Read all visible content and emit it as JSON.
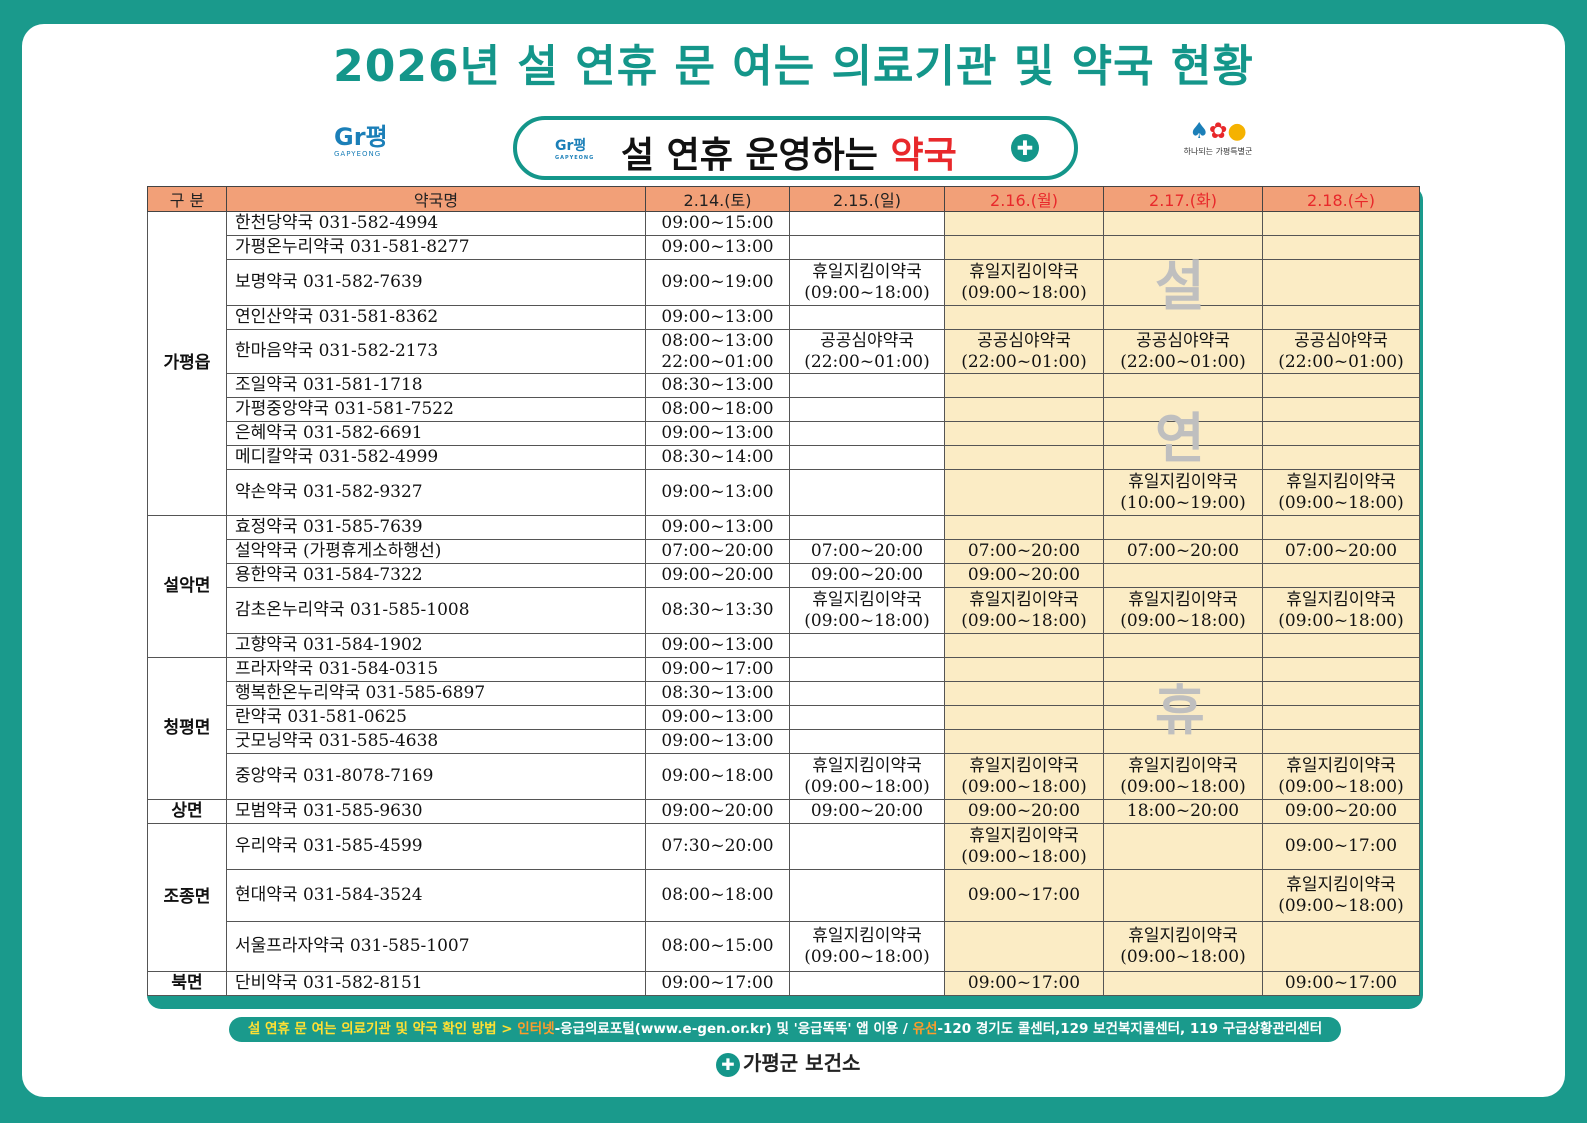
{
  "title": "2026년 설 연휴 문 여는 의료기관 및 약국 현황",
  "subtitle": {
    "prefix": "설 연휴 운영하는 ",
    "highlight": "약국"
  },
  "logos": {
    "left": "Gr평",
    "left_sub": "GAPYEONG",
    "right_sub": "하나되는 가평특별군"
  },
  "columns": [
    "구 분",
    "약국명",
    "2.14.(토)",
    "2.15.(일)",
    "2.16.(월)",
    "2.17.(화)",
    "2.18.(수)"
  ],
  "holiday_overlay": [
    "설",
    "연",
    "휴"
  ],
  "rows": [
    {
      "region": "가평읍",
      "name": "한천당약국 031-582-4994",
      "d14": "09:00~15:00",
      "d15": "",
      "d16": "",
      "d17": "",
      "d18": ""
    },
    {
      "name": "가평온누리약국 031-581-8277",
      "d14": "09:00~13:00",
      "d15": "",
      "d16": "",
      "d17": "",
      "d18": ""
    },
    {
      "name": "보명약국 031-582-7639",
      "d14": "09:00~19:00",
      "d15": "휴일지킴이약국\n(09:00~18:00)",
      "d16": "휴일지킴이약국\n(09:00~18:00)",
      "d17": "",
      "d18": ""
    },
    {
      "name": "연인산약국 031-581-8362",
      "d14": "09:00~13:00",
      "d15": "",
      "d16": "",
      "d17": "",
      "d18": ""
    },
    {
      "name": "한마음약국 031-582-2173",
      "d14": "08:00~13:00\n22:00~01:00",
      "d15": "공공심야약국\n(22:00~01:00)",
      "d16": "공공심야약국\n(22:00~01:00)",
      "d17": "공공심야약국\n(22:00~01:00)",
      "d18": "공공심야약국\n(22:00~01:00)"
    },
    {
      "name": "조일약국 031-581-1718",
      "d14": "08:30~13:00",
      "d15": "",
      "d16": "",
      "d17": "",
      "d18": ""
    },
    {
      "name": "가평중앙약국 031-581-7522",
      "d14": "08:00~18:00",
      "d15": "",
      "d16": "",
      "d17": "",
      "d18": ""
    },
    {
      "name": "은혜약국 031-582-6691",
      "d14": "09:00~13:00",
      "d15": "",
      "d16": "",
      "d17": "",
      "d18": ""
    },
    {
      "name": "메디칼약국 031-582-4999",
      "d14": "08:30~14:00",
      "d15": "",
      "d16": "",
      "d17": "",
      "d18": ""
    },
    {
      "name": "약손약국 031-582-9327",
      "d14": "09:00~13:00",
      "d15": "",
      "d16": "",
      "d17": "휴일지킴이약국\n(10:00~19:00)",
      "d18": "휴일지킴이약국\n(09:00~18:00)"
    },
    {
      "region": "설악면",
      "name": "효정약국 031-585-7639",
      "d14": "09:00~13:00",
      "d15": "",
      "d16": "",
      "d17": "",
      "d18": ""
    },
    {
      "name": "설악약국 (가평휴게소하행선)",
      "d14": "07:00~20:00",
      "d15": "07:00~20:00",
      "d16": "07:00~20:00",
      "d17": "07:00~20:00",
      "d18": "07:00~20:00"
    },
    {
      "name": "용한약국 031-584-7322",
      "d14": "09:00~20:00",
      "d15": "09:00~20:00",
      "d16": "09:00~20:00",
      "d17": "",
      "d18": ""
    },
    {
      "name": "감초온누리약국 031-585-1008",
      "d14": "08:30~13:30",
      "d15": "휴일지킴이약국\n(09:00~18:00)",
      "d16": "휴일지킴이약국\n(09:00~18:00)",
      "d17": "휴일지킴이약국\n(09:00~18:00)",
      "d18": "휴일지킴이약국\n(09:00~18:00)"
    },
    {
      "name": "고향약국 031-584-1902",
      "d14": "09:00~13:00",
      "d15": "",
      "d16": "",
      "d17": "",
      "d18": ""
    },
    {
      "region": "청평면",
      "name": "프라자약국 031-584-0315",
      "d14": "09:00~17:00",
      "d15": "",
      "d16": "",
      "d17": "",
      "d18": ""
    },
    {
      "name": "행복한온누리약국 031-585-6897",
      "d14": "08:30~13:00",
      "d15": "",
      "d16": "",
      "d17": "",
      "d18": ""
    },
    {
      "name": "란약국 031-581-0625",
      "d14": "09:00~13:00",
      "d15": "",
      "d16": "",
      "d17": "",
      "d18": ""
    },
    {
      "name": "굿모닝약국 031-585-4638",
      "d14": "09:00~13:00",
      "d15": "",
      "d16": "",
      "d17": "",
      "d18": ""
    },
    {
      "name": "중앙약국 031-8078-7169",
      "d14": "09:00~18:00",
      "d15": "휴일지킴이약국\n(09:00~18:00)",
      "d16": "휴일지킴이약국\n(09:00~18:00)",
      "d17": "휴일지킴이약국\n(09:00~18:00)",
      "d18": "휴일지킴이약국\n(09:00~18:00)"
    },
    {
      "region": "상면",
      "name": "모범약국 031-585-9630",
      "d14": "09:00~20:00",
      "d15": "09:00~20:00",
      "d16": "09:00~20:00",
      "d17": "18:00~20:00",
      "d18": "09:00~20:00"
    },
    {
      "region": "조종면",
      "name": "우리약국 031-585-4599",
      "d14": "07:30~20:00",
      "d15": "",
      "d16": "휴일지킴이약국\n(09:00~18:00)",
      "d17": "",
      "d18": "09:00~17:00"
    },
    {
      "name": "현대약국 031-584-3524",
      "d14": "08:00~18:00",
      "d15": "",
      "d16": "09:00~17:00",
      "d17": "",
      "d18": "휴일지킴이약국\n(09:00~18:00)"
    },
    {
      "name": "서울프라자약국 031-585-1007",
      "d14": "08:00~15:00",
      "d15": "휴일지킴이약국\n(09:00~18:00)",
      "d16": "",
      "d17": "휴일지킴이약국\n(09:00~18:00)",
      "d18": ""
    },
    {
      "region": "북면",
      "name": "단비약국 031-582-8151",
      "d14": "09:00~17:00",
      "d15": "",
      "d16": "09:00~17:00",
      "d17": "",
      "d18": "09:00~17:00"
    }
  ],
  "footer": {
    "lead": "설 연휴 문 여는 의료기관 및 약국 확인 방법 > ",
    "internet_label": "인터넷",
    "internet_text": "-응급의료포털(www.e-gen.or.kr) 및 '응급똑똑' 앱 이용 / ",
    "phone_label": "유선",
    "phone_text": "-120 경기도 콜센터,129 보건복지콜센터, 119 구급상황관리센터"
  },
  "organization": "가평군 보건소",
  "colors": {
    "teal": "#1a9a8c",
    "header": "#f2a078",
    "holiday": "#fbecc5",
    "accent_red": "#e8282b"
  }
}
